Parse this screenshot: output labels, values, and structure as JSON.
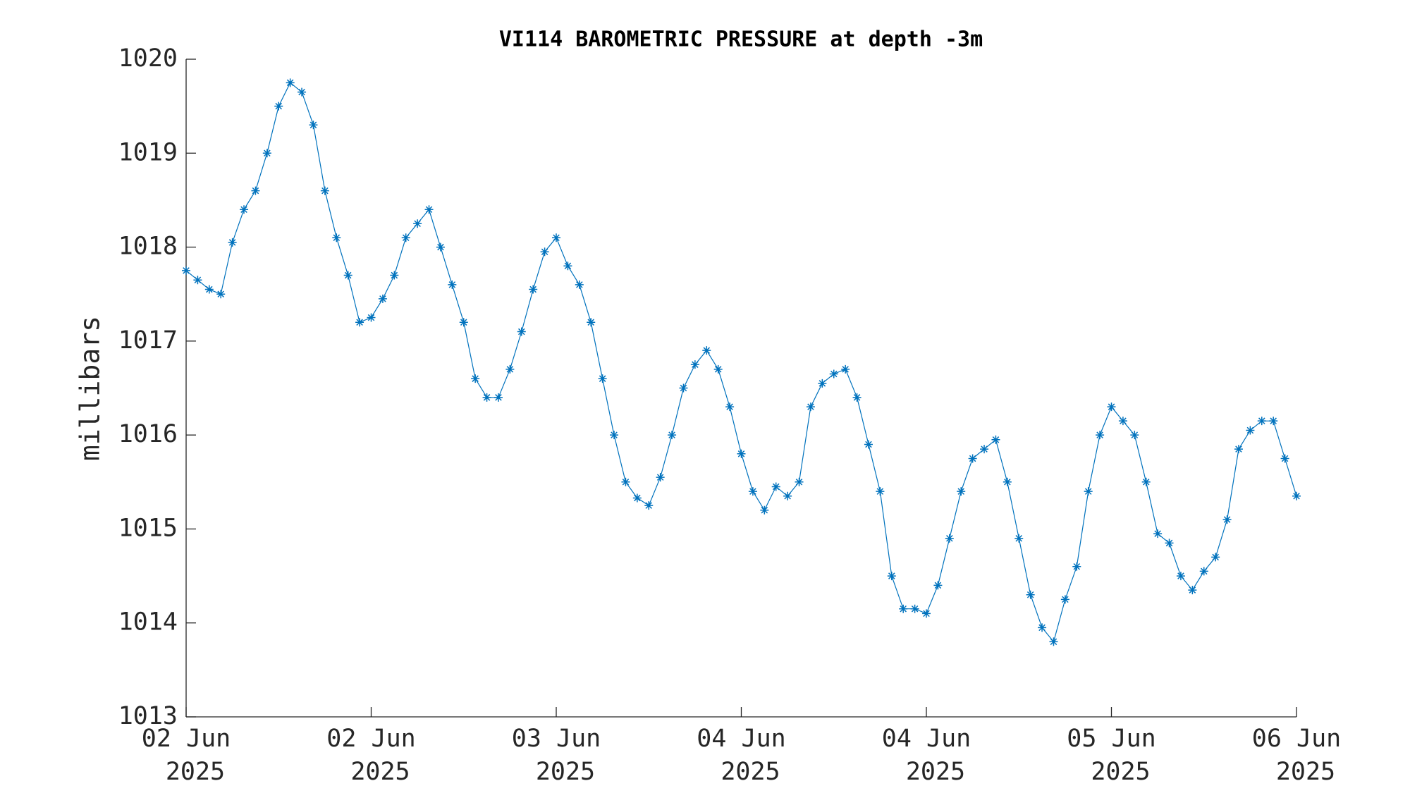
{
  "chart_data": {
    "type": "line",
    "title": "VI114 BAROMETRIC PRESSURE at depth -3m",
    "y_label": "millibars",
    "x": [
      0,
      1,
      2,
      3,
      4,
      5,
      6,
      7,
      8,
      9,
      10,
      11,
      12,
      13,
      14,
      15,
      16,
      17,
      18,
      19,
      20,
      21,
      22,
      23,
      24,
      25,
      26,
      27,
      28,
      29,
      30,
      31,
      32,
      33,
      34,
      35,
      36,
      37,
      38,
      39,
      40,
      41,
      42,
      43,
      44,
      45,
      46,
      47,
      48,
      49,
      50,
      51,
      52,
      53,
      54,
      55,
      56,
      57,
      58,
      59,
      60,
      61,
      62,
      63,
      64,
      65,
      66,
      67,
      68,
      69,
      70,
      71,
      72,
      73,
      74,
      75,
      76,
      77,
      78,
      79,
      80,
      81,
      82,
      83,
      84,
      85,
      86,
      87,
      88,
      89,
      90,
      91,
      92,
      93,
      94,
      95,
      96
    ],
    "series": [
      {
        "name": "barometric pressure",
        "color": "#0072bd",
        "marker": "*",
        "values": [
          1017.75,
          1017.65,
          1017.55,
          1017.5,
          1018.05,
          1018.4,
          1018.6,
          1019.0,
          1019.5,
          1019.75,
          1019.65,
          1019.3,
          1018.6,
          1018.1,
          1017.7,
          1017.2,
          1017.25,
          1017.45,
          1017.7,
          1018.1,
          1018.25,
          1018.4,
          1018.0,
          1017.6,
          1017.2,
          1016.6,
          1016.4,
          1016.4,
          1016.7,
          1017.1,
          1017.55,
          1017.95,
          1018.1,
          1017.8,
          1017.6,
          1017.2,
          1016.6,
          1016.0,
          1015.5,
          1015.33,
          1015.25,
          1015.55,
          1016.0,
          1016.5,
          1016.75,
          1016.9,
          1016.7,
          1016.3,
          1015.8,
          1015.4,
          1015.2,
          1015.45,
          1015.35,
          1015.5,
          1016.3,
          1016.55,
          1016.65,
          1016.7,
          1016.4,
          1015.9,
          1015.4,
          1014.5,
          1014.15,
          1014.15,
          1014.1,
          1014.4,
          1014.9,
          1015.4,
          1015.75,
          1015.85,
          1015.95,
          1015.5,
          1014.9,
          1014.3,
          1013.95,
          1013.8,
          1014.25,
          1014.6,
          1015.4,
          1016.0,
          1016.3,
          1016.15,
          1016.0,
          1015.5,
          1014.95,
          1014.85,
          1014.5,
          1014.35,
          1014.55,
          1014.7,
          1015.1,
          1015.85,
          1016.05,
          1016.15,
          1016.15,
          1015.75,
          1015.35
        ]
      }
    ],
    "xlim": [
      0,
      96
    ],
    "xticks": [
      {
        "value": 0,
        "label": [
          "02 Jun",
          "2025"
        ]
      },
      {
        "value": 16,
        "label": [
          "02 Jun",
          "2025"
        ]
      },
      {
        "value": 32,
        "label": [
          "03 Jun",
          "2025"
        ]
      },
      {
        "value": 48,
        "label": [
          "04 Jun",
          "2025"
        ]
      },
      {
        "value": 64,
        "label": [
          "04 Jun",
          "2025"
        ]
      },
      {
        "value": 80,
        "label": [
          "05 Jun",
          "2025"
        ]
      },
      {
        "value": 96,
        "label": [
          "06 Jun",
          "2025"
        ]
      }
    ],
    "ylim": [
      1013,
      1020
    ],
    "yticks": [
      1013,
      1014,
      1015,
      1016,
      1017,
      1018,
      1019,
      1020
    ],
    "grid": false
  }
}
